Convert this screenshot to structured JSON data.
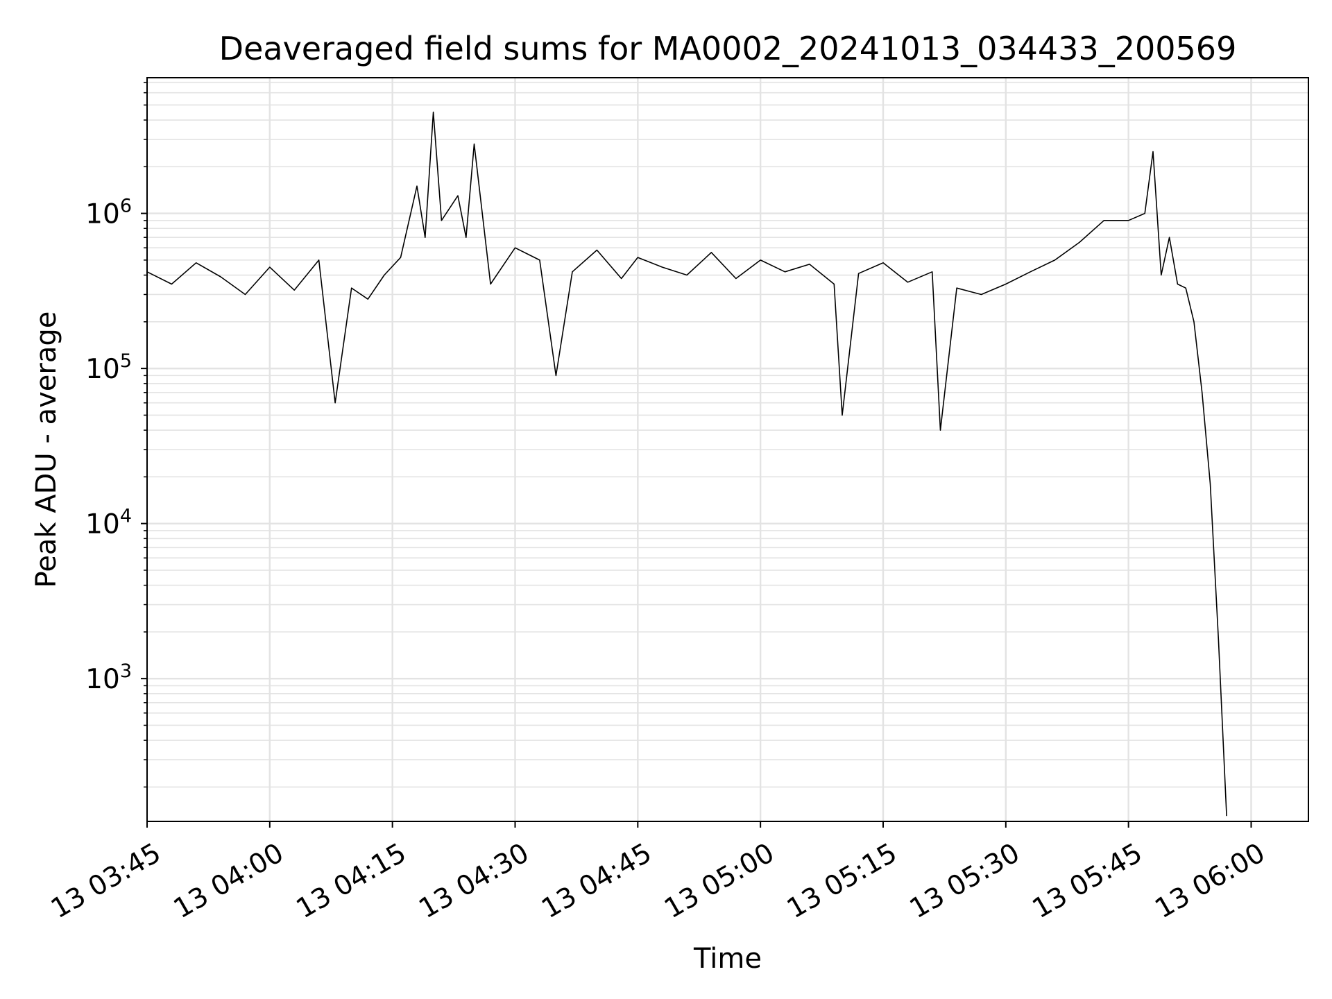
{
  "chart_data": {
    "type": "line",
    "title": "Deaveraged field sums for MA0002_20241013_034433_200569",
    "xlabel": "Time",
    "ylabel": "Peak ADU - average",
    "yscale": "log",
    "ylim": [
      120,
      7500000
    ],
    "xlim": [
      "13 03:45",
      "13 06:07"
    ],
    "x_ticks": [
      "13 03:45",
      "13 04:00",
      "13 04:15",
      "13 04:30",
      "13 04:45",
      "13 05:00",
      "13 05:15",
      "13 05:30",
      "13 05:45",
      "13 06:00"
    ],
    "y_ticks": [
      {
        "base": "10",
        "exp": "3",
        "value": 1000
      },
      {
        "base": "10",
        "exp": "4",
        "value": 10000
      },
      {
        "base": "10",
        "exp": "5",
        "value": 100000
      },
      {
        "base": "10",
        "exp": "6",
        "value": 1000000
      }
    ],
    "grid": true,
    "line_color": "#000000",
    "series": [
      {
        "x": [
          "13 03:45",
          "13 03:48",
          "13 03:51",
          "13 03:54",
          "13 03:57",
          "13 04:00",
          "13 04:03",
          "13 04:06",
          "13 04:08",
          "13 04:10",
          "13 04:12",
          "13 04:14",
          "13 04:16",
          "13 04:18",
          "13 04:19",
          "13 04:20",
          "13 04:21",
          "13 04:23",
          "13 04:24",
          "13 04:25",
          "13 04:27",
          "13 04:30",
          "13 04:33",
          "13 04:35",
          "13 04:37",
          "13 04:40",
          "13 04:43",
          "13 04:45",
          "13 04:48",
          "13 04:51",
          "13 04:54",
          "13 04:57",
          "13 05:00",
          "13 05:03",
          "13 05:06",
          "13 05:09",
          "13 05:10",
          "13 05:12",
          "13 05:15",
          "13 05:18",
          "13 05:21",
          "13 05:22",
          "13 05:24",
          "13 05:27",
          "13 05:30",
          "13 05:33",
          "13 05:36",
          "13 05:39",
          "13 05:42",
          "13 05:45",
          "13 05:47",
          "13 05:48",
          "13 05:49",
          "13 05:50",
          "13 05:51",
          "13 05:52",
          "13 05:53",
          "13 05:54",
          "13 05:55",
          "13 05:56",
          "13 05:57"
        ],
        "y": [
          420000,
          350000,
          480000,
          390000,
          300000,
          450000,
          320000,
          500000,
          60000,
          330000,
          280000,
          400000,
          520000,
          1500000,
          700000,
          4500000,
          900000,
          1300000,
          700000,
          2800000,
          350000,
          600000,
          500000,
          90000,
          420000,
          580000,
          380000,
          520000,
          450000,
          400000,
          560000,
          380000,
          500000,
          420000,
          470000,
          350000,
          50000,
          410000,
          480000,
          360000,
          420000,
          40000,
          330000,
          300000,
          350000,
          420000,
          500000,
          650000,
          900000,
          900000,
          1000000,
          2500000,
          400000,
          700000,
          350000,
          330000,
          200000,
          70000,
          18000,
          1800,
          130
        ]
      }
    ]
  }
}
